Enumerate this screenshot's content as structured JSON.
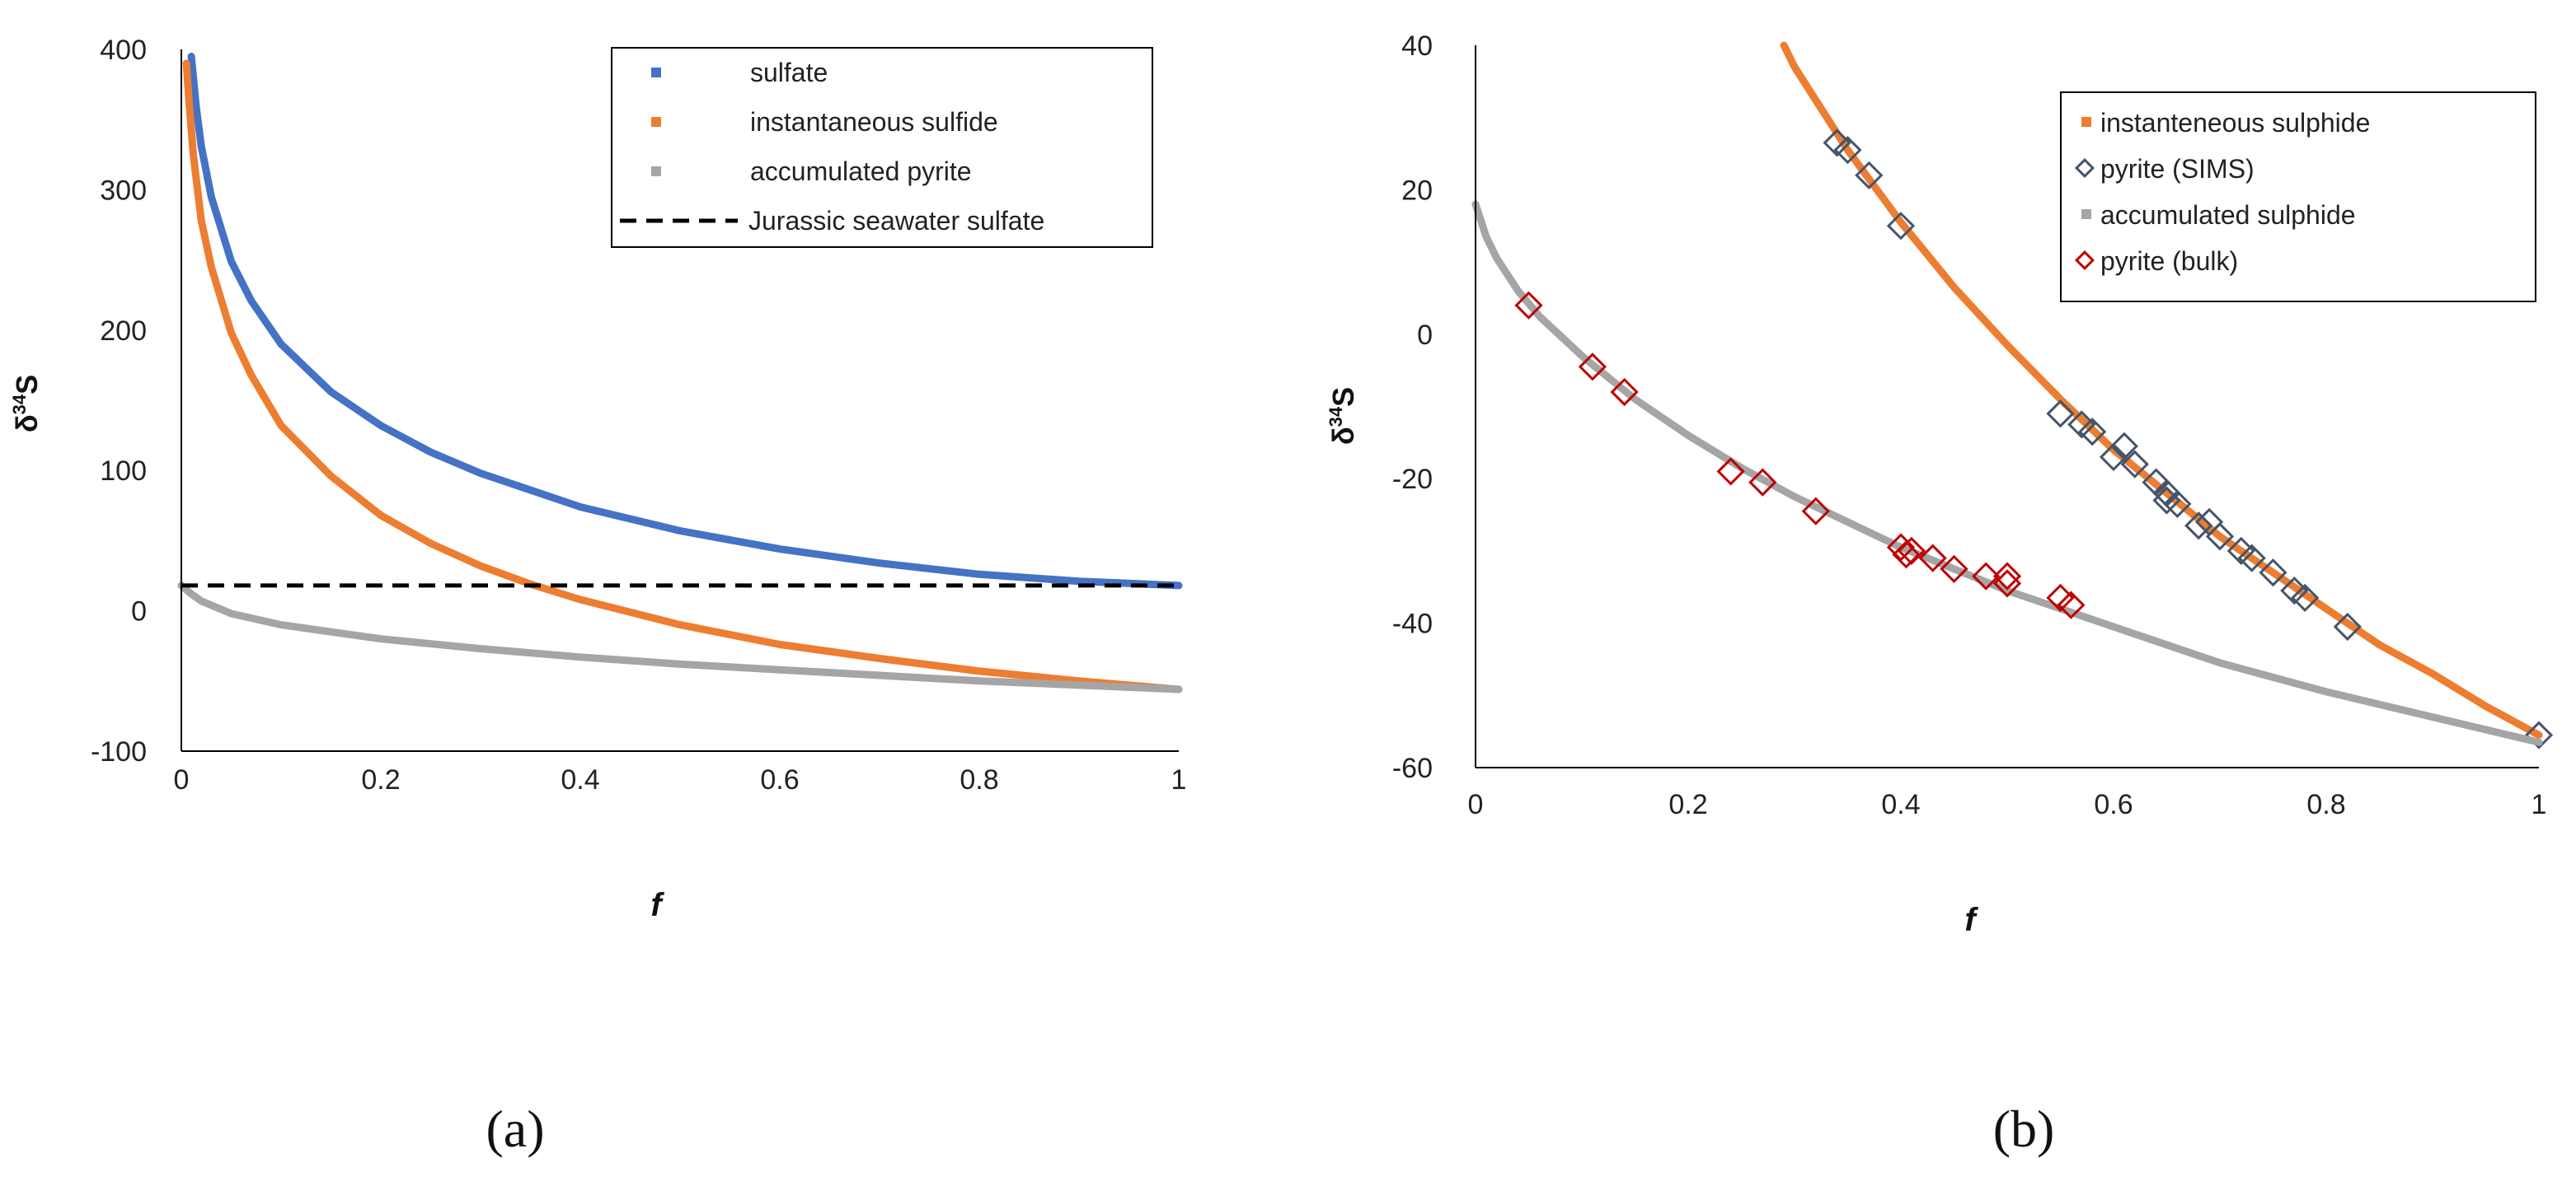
{
  "chart_data": [
    {
      "type": "line",
      "panel_label": "(a)",
      "xlabel": "f",
      "ylabel": {
        "prefix": "δ",
        "sup": "34",
        "suffix": "S"
      },
      "xlim": [
        0,
        1
      ],
      "ylim": [
        -100,
        400
      ],
      "xticks": [
        0,
        0.2,
        0.4,
        0.6,
        0.8,
        1
      ],
      "yticks": [
        -100,
        0,
        100,
        200,
        300,
        400
      ],
      "xtick_labels": [
        "0",
        "0.2",
        "0.4",
        "0.6",
        "0.8",
        "1"
      ],
      "ytick_labels": [
        "-100",
        "0",
        "100",
        "200",
        "300",
        "400"
      ],
      "legend_position": "top-right",
      "series": [
        {
          "name": "sulfate",
          "color": "#4472C4",
          "style": "solid",
          "x": [
            0.01,
            0.015,
            0.02,
            0.03,
            0.05,
            0.07,
            0.1,
            0.15,
            0.2,
            0.25,
            0.3,
            0.4,
            0.5,
            0.6,
            0.7,
            0.8,
            0.9,
            1.0
          ],
          "y": [
            395,
            358,
            331,
            295,
            249,
            221,
            190,
            156,
            132,
            113,
            98,
            74,
            57,
            44,
            34,
            26,
            21,
            18
          ]
        },
        {
          "name": "instantaneous sulfide",
          "color": "#ED7D31",
          "style": "solid",
          "x": [
            0.005,
            0.008,
            0.012,
            0.02,
            0.03,
            0.05,
            0.07,
            0.1,
            0.15,
            0.2,
            0.25,
            0.3,
            0.35,
            0.4,
            0.5,
            0.6,
            0.7,
            0.8,
            0.9,
            1.0
          ],
          "y": [
            390,
            360,
            325,
            278,
            245,
            198,
            168,
            132,
            96,
            68,
            48,
            32,
            19,
            8,
            -10,
            -24,
            -34,
            -43,
            -50,
            -56
          ]
        },
        {
          "name": "accumulated pyrite",
          "color": "#A5A5A5",
          "style": "solid",
          "x": [
            0,
            0.01,
            0.02,
            0.05,
            0.1,
            0.15,
            0.2,
            0.3,
            0.4,
            0.5,
            0.6,
            0.7,
            0.8,
            0.9,
            1.0
          ],
          "y": [
            18,
            12,
            7,
            -2,
            -10,
            -15,
            -20,
            -27,
            -33,
            -38,
            -42,
            -46,
            -50,
            -53,
            -56
          ]
        },
        {
          "name": "Jurassic seawater sulfate",
          "color": "#000000",
          "style": "dashed",
          "x": [
            0,
            1
          ],
          "y": [
            18,
            18
          ]
        }
      ]
    },
    {
      "type": "line",
      "panel_label": "(b)",
      "xlabel": "f",
      "ylabel": {
        "prefix": "δ",
        "sup": "34",
        "suffix": "S"
      },
      "xlim": [
        0,
        1
      ],
      "ylim": [
        -60,
        40
      ],
      "xticks": [
        0,
        0.2,
        0.4,
        0.6,
        0.8,
        1
      ],
      "yticks": [
        -60,
        -40,
        -20,
        0,
        20,
        40
      ],
      "xtick_labels": [
        "0",
        "0.2",
        "0.4",
        "0.6",
        "0.8",
        "1"
      ],
      "ytick_labels": [
        "-60",
        "-40",
        "-20",
        "0",
        "20",
        "40"
      ],
      "legend_position": "top-right",
      "series": [
        {
          "name": "instanteneous sulphide",
          "color": "#ED7D31",
          "kind": "line",
          "x": [
            0.29,
            0.3,
            0.35,
            0.4,
            0.45,
            0.5,
            0.55,
            0.6,
            0.65,
            0.7,
            0.75,
            0.8,
            0.85,
            0.9,
            0.95,
            1.0
          ],
          "y": [
            40,
            37,
            25.5,
            15.5,
            6.5,
            -1.5,
            -9,
            -16,
            -22,
            -28,
            -33,
            -38,
            -43,
            -47,
            -51.5,
            -55.5
          ]
        },
        {
          "name": "pyrite (SIMS)",
          "color": "#44546A",
          "kind": "marker",
          "x": [
            0.34,
            0.35,
            0.37,
            0.4,
            0.55,
            0.57,
            0.58,
            0.6,
            0.61,
            0.62,
            0.64,
            0.65,
            0.65,
            0.66,
            0.68,
            0.69,
            0.7,
            0.72,
            0.73,
            0.75,
            0.77,
            0.78,
            0.82,
            1.0
          ],
          "y": [
            26.5,
            25.5,
            22,
            15,
            -11,
            -12.5,
            -13.5,
            -17,
            -15.5,
            -18,
            -20.5,
            -22,
            -23,
            -23.5,
            -26.5,
            -26,
            -28,
            -30,
            -31,
            -33,
            -35.5,
            -36.5,
            -40.5,
            -55.5
          ]
        },
        {
          "name": "accumulated sulphide",
          "color": "#A5A5A5",
          "kind": "line",
          "x": [
            0,
            0.01,
            0.02,
            0.04,
            0.06,
            0.1,
            0.15,
            0.2,
            0.25,
            0.3,
            0.35,
            0.4,
            0.45,
            0.5,
            0.6,
            0.7,
            0.8,
            0.9,
            1.0
          ],
          "y": [
            18,
            13.5,
            10.5,
            6,
            2.5,
            -3,
            -9,
            -14,
            -18.5,
            -22.5,
            -26,
            -29.5,
            -32.5,
            -35.5,
            -40.5,
            -45.5,
            -49.5,
            -53,
            -56.5
          ]
        },
        {
          "name": "pyrite (bulk)",
          "color": "#C00000",
          "kind": "marker",
          "x": [
            0.05,
            0.11,
            0.14,
            0.24,
            0.27,
            0.32,
            0.4,
            0.405,
            0.41,
            0.43,
            0.45,
            0.48,
            0.5,
            0.5,
            0.55,
            0.56
          ],
          "y": [
            4,
            -4.5,
            -8,
            -19,
            -20.5,
            -24.5,
            -29.5,
            -30.5,
            -30,
            -31,
            -32.5,
            -33.5,
            -34.5,
            -33.5,
            -36.5,
            -37.5
          ]
        }
      ]
    }
  ]
}
